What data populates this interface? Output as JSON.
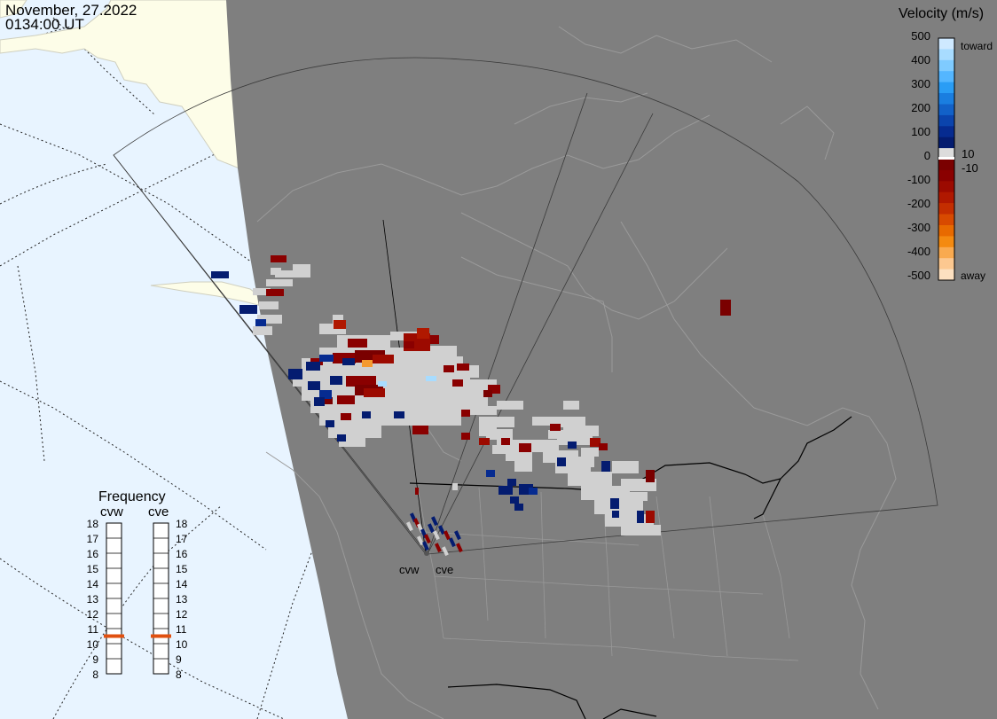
{
  "header": {
    "date": "November, 27.2022",
    "time": "0134:00 UT"
  },
  "colors": {
    "ocean": "#e8f4ff",
    "night_land": "#7f7f7f",
    "day_land": "#fdfde8",
    "scatter_gray": "#d0d0d0"
  },
  "velocity_scale": {
    "title": "Velocity (m/s)",
    "ticks": [
      "500",
      "400",
      "300",
      "200",
      "100",
      "0",
      "-100",
      "-200",
      "-300",
      "-400",
      "-500"
    ],
    "small_pos": "10",
    "small_neg": "-10",
    "toward_label": "toward",
    "away_label": "away"
  },
  "frequency_panel": {
    "title": "Frequency",
    "radars": [
      "cvw",
      "cve"
    ],
    "ticks": [
      "18",
      "17",
      "16",
      "15",
      "14",
      "13",
      "12",
      "11",
      "10",
      "9",
      "8"
    ],
    "cvw_mhz": 10.5,
    "cve_mhz": 10.5,
    "indicator_color": "#e05010"
  },
  "radar_labels": {
    "cvw": "cvw",
    "cve": "cve"
  }
}
